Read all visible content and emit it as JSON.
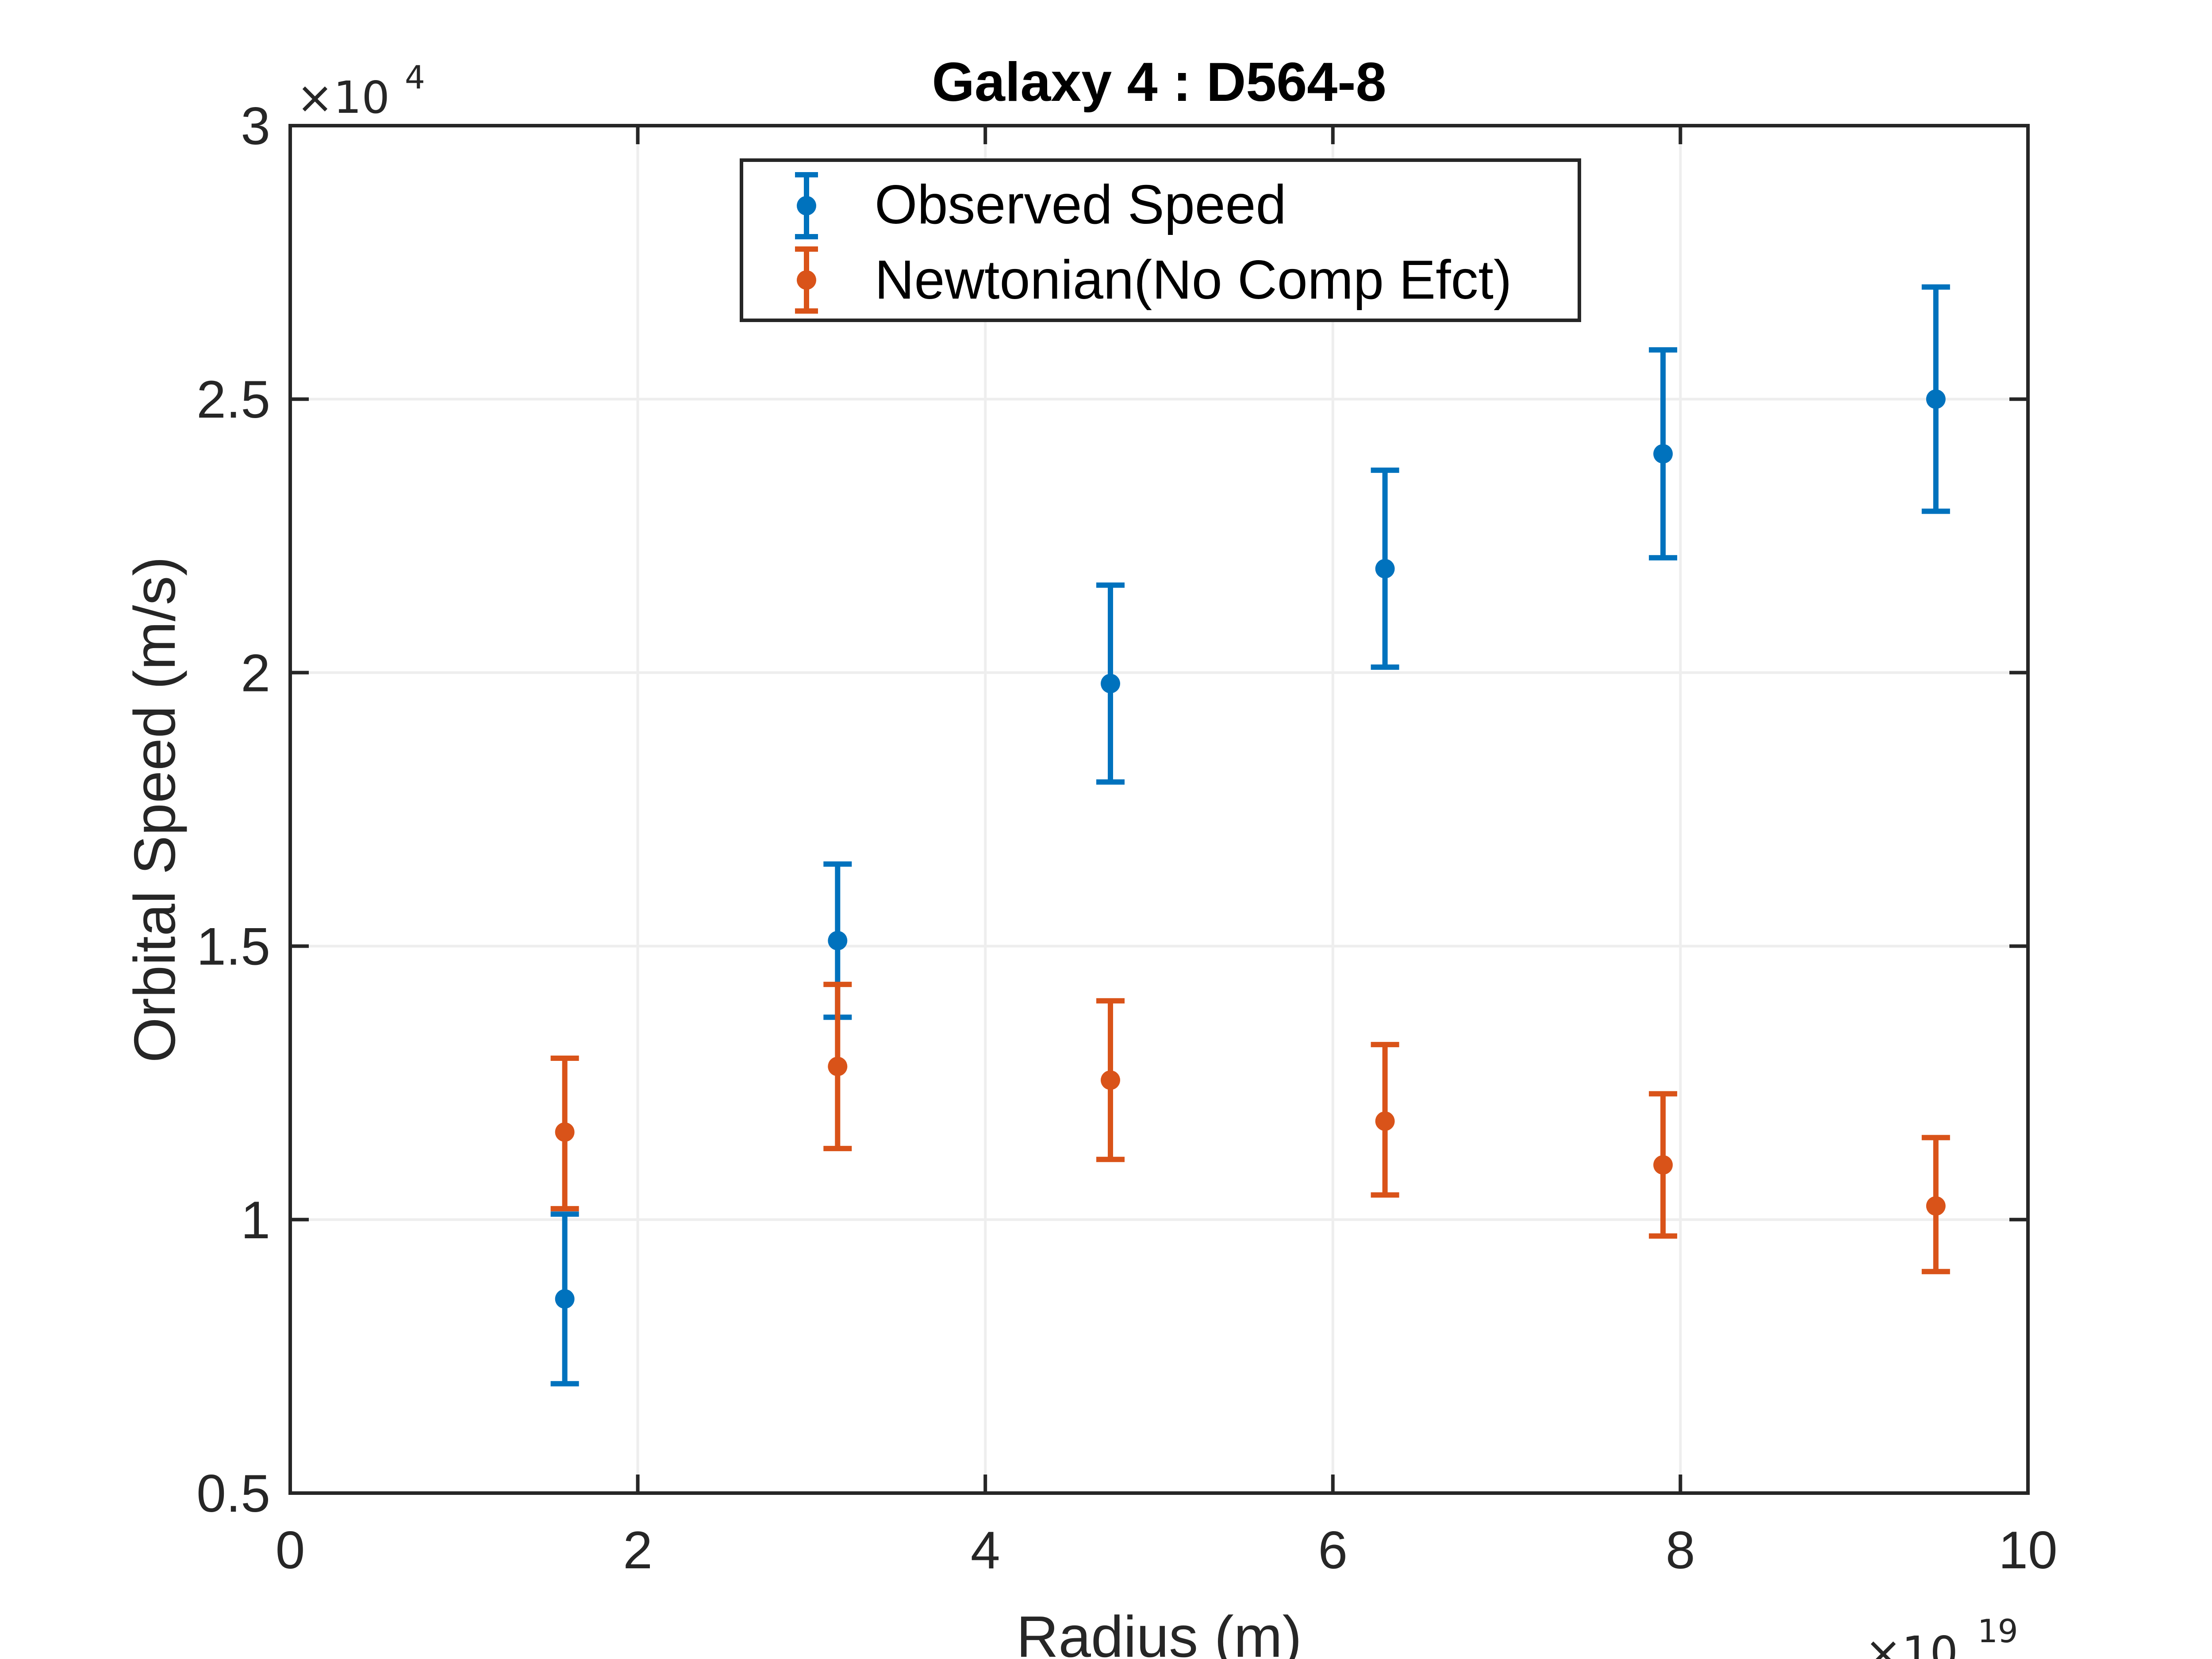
{
  "chart_data": {
    "type": "scatter",
    "title": "Galaxy 4 : D564-8",
    "xlabel": "Radius (m)",
    "ylabel": "Orbital Speed (m/s)",
    "x_exponent": "19",
    "y_exponent": "4",
    "xlim": [
      0,
      10
    ],
    "ylim": [
      0.5,
      3
    ],
    "x_ticks": [
      "0",
      "2",
      "4",
      "6",
      "8",
      "10"
    ],
    "y_ticks": [
      "0.5",
      "1",
      "1.5",
      "2",
      "2.5",
      "3"
    ],
    "grid": true,
    "legend_position": "top-center",
    "x": [
      1.58,
      3.15,
      4.72,
      6.3,
      7.9,
      9.47
    ],
    "series": [
      {
        "name": "Observed Speed",
        "color": "#0072BD",
        "values": [
          0.855,
          1.51,
          1.98,
          2.19,
          2.4,
          2.5
        ],
        "err_low": [
          0.7,
          1.37,
          1.8,
          2.01,
          2.21,
          2.295
        ],
        "err_high": [
          1.01,
          1.65,
          2.16,
          2.37,
          2.59,
          2.705
        ]
      },
      {
        "name": "Newtonian(No Comp Efct)",
        "color": "#D95319",
        "values": [
          1.16,
          1.28,
          1.255,
          1.18,
          1.1,
          1.025
        ],
        "err_low": [
          1.02,
          1.13,
          1.11,
          1.045,
          0.97,
          0.905
        ],
        "err_high": [
          1.295,
          1.43,
          1.4,
          1.32,
          1.23,
          1.15
        ]
      }
    ]
  }
}
